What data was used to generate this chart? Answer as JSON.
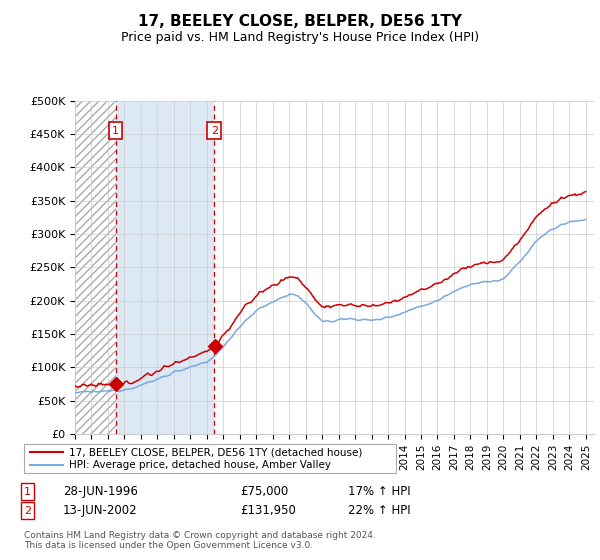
{
  "title": "17, BEELEY CLOSE, BELPER, DE56 1TY",
  "subtitle": "Price paid vs. HM Land Registry's House Price Index (HPI)",
  "ylim": [
    0,
    500000
  ],
  "yticks": [
    0,
    50000,
    100000,
    150000,
    200000,
    250000,
    300000,
    350000,
    400000,
    450000,
    500000
  ],
  "ytick_labels": [
    "£0",
    "£50K",
    "£100K",
    "£150K",
    "£200K",
    "£250K",
    "£300K",
    "£350K",
    "£400K",
    "£450K",
    "£500K"
  ],
  "hpi_color": "#7aaadd",
  "price_color": "#cc0000",
  "sale1_year": 1996.46,
  "sale1_price": 75000,
  "sale1_hpi_pct": "17% ↑ HPI",
  "sale1_date": "28-JUN-1996",
  "sale2_year": 2002.46,
  "sale2_price": 131950,
  "sale2_hpi_pct": "22% ↑ HPI",
  "sale2_date": "13-JUN-2002",
  "legend1": "17, BEELEY CLOSE, BELPER, DE56 1TY (detached house)",
  "legend2": "HPI: Average price, detached house, Amber Valley",
  "footnote": "Contains HM Land Registry data © Crown copyright and database right 2024.\nThis data is licensed under the Open Government Licence v3.0.",
  "hatch_color": "#dde8f5",
  "grid_color": "#cccccc",
  "title_fontsize": 11,
  "subtitle_fontsize": 9,
  "tick_fontsize": 8,
  "xstart": 1994,
  "xend": 2025.5
}
